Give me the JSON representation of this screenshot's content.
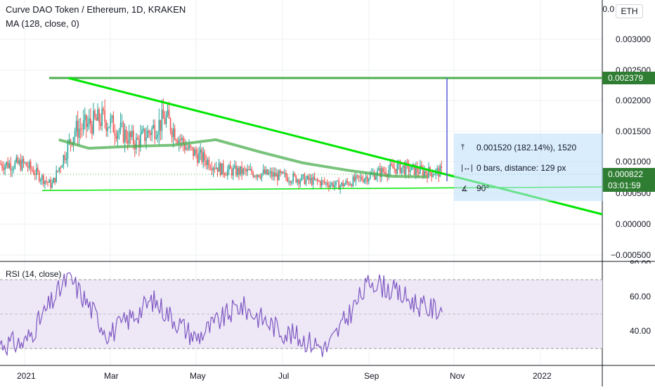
{
  "header": {
    "symbol_title": "Curve DAO Token / Ethereum, 1D, KRAKEN",
    "indicator": "MA (128, close, 0)",
    "rsi_label": "RSI (14, close)",
    "currency_button": "ETH"
  },
  "price_axis": {
    "labels": [
      "0.003000",
      "0.002500",
      "0.002000",
      "0.001500",
      "0.001000",
      "0.000500",
      "0.000000",
      "−0.000500"
    ],
    "top_label": "0.0"
  },
  "rsi_axis": {
    "labels": [
      "60.00",
      "40.00"
    ],
    "top_label": "80.00"
  },
  "time_axis": {
    "labels": [
      "2021",
      "Mar",
      "May",
      "Jul",
      "Sep",
      "Nov",
      "2022"
    ]
  },
  "price_tags": {
    "resistance": "0.002379",
    "current": "0.000822",
    "countdown": "03:01:59"
  },
  "measure_tool": {
    "price_change": "0.001520 (182.14%), 1520",
    "bars_distance": "0 bars, distance: 129 px",
    "angle": "90°",
    "icons": [
      "price-range-icon",
      "bar-range-icon",
      "angle-icon"
    ]
  },
  "colors": {
    "candle_up": "#26a69a",
    "candle_down": "#ef5350",
    "ma_line": "#4caf50",
    "trendline": "#00e600",
    "rsi_line": "#7e57c2",
    "rsi_band": "#ede7f6",
    "measure_line": "#5b5bd6",
    "price_tag_green": "#2e7d32"
  },
  "chart_data": {
    "type": "line",
    "title": "Curve DAO Token / Ethereum, 1D, KRAKEN",
    "series": [
      {
        "name": "MA (128, close, 0)",
        "x": [
          "2021-01-25",
          "2021-02-15",
          "2021-03-15",
          "2021-04-15",
          "2021-05-15",
          "2021-06-15",
          "2021-07-15",
          "2021-08-15",
          "2021-09-15",
          "2021-10-10"
        ],
        "values": [
          0.00135,
          0.00121,
          0.00124,
          0.00126,
          0.00135,
          0.00115,
          0.00097,
          0.00085,
          0.00075,
          0.00074
        ]
      },
      {
        "name": "RSI (14, close)",
        "x": [
          "2021-01-01",
          "2021-02-01",
          "2021-03-01",
          "2021-04-01",
          "2021-05-01",
          "2021-06-01",
          "2021-07-01",
          "2021-08-01",
          "2021-09-01",
          "2021-10-10"
        ],
        "values": [
          33,
          72,
          38,
          58,
          36,
          55,
          40,
          30,
          70,
          53
        ]
      }
    ],
    "price_close_approx": {
      "x": [
        "2021-01-01",
        "2021-01-20",
        "2021-02-05",
        "2021-02-25",
        "2021-03-20",
        "2021-04-10",
        "2021-04-25",
        "2021-05-20",
        "2021-06-15",
        "2021-07-15",
        "2021-08-10",
        "2021-09-05",
        "2021-09-20",
        "2021-10-10"
      ],
      "values": [
        0.00095,
        0.0006,
        0.0015,
        0.0017,
        0.0013,
        0.0017,
        0.0012,
        0.00085,
        0.0008,
        0.0007,
        0.0006,
        0.0008,
        0.0009,
        0.00082
      ]
    },
    "ylim": [
      -0.0005,
      0.0035
    ],
    "rsi_ylim": [
      20,
      80
    ]
  }
}
